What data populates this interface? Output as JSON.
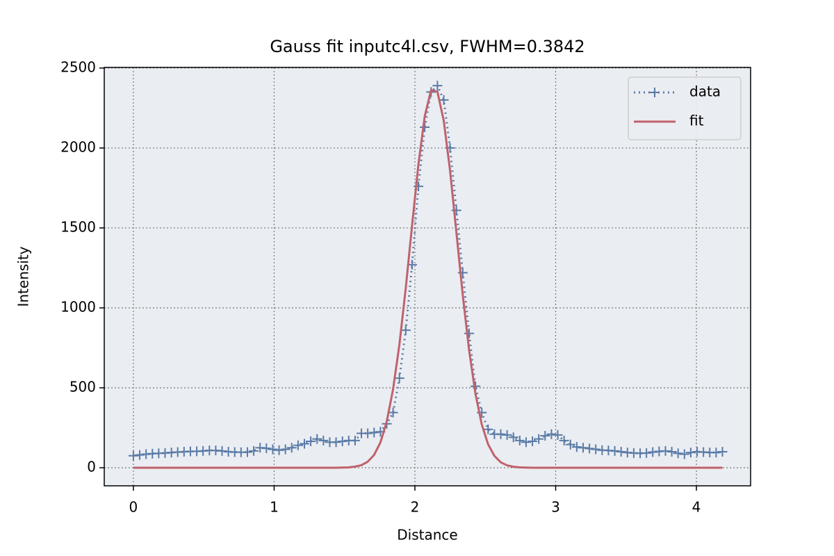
{
  "chart_data": {
    "type": "line",
    "title": "Gauss fit inputc4l.csv, FWHM=0.3842",
    "x_label": "Distance",
    "y_label": "Intensity",
    "x": [
      0,
      0.045,
      0.09,
      0.135,
      0.18,
      0.225,
      0.27,
      0.315,
      0.36,
      0.405,
      0.45,
      0.495,
      0.54,
      0.585,
      0.63,
      0.675,
      0.72,
      0.765,
      0.81,
      0.855,
      0.9,
      0.945,
      0.99,
      1.035,
      1.08,
      1.125,
      1.17,
      1.215,
      1.26,
      1.305,
      1.35,
      1.395,
      1.44,
      1.485,
      1.53,
      1.575,
      1.62,
      1.665,
      1.71,
      1.755,
      1.8,
      1.845,
      1.89,
      1.935,
      1.98,
      2.025,
      2.07,
      2.115,
      2.16,
      2.205,
      2.25,
      2.295,
      2.34,
      2.385,
      2.43,
      2.475,
      2.52,
      2.565,
      2.61,
      2.655,
      2.7,
      2.745,
      2.79,
      2.835,
      2.88,
      2.925,
      2.97,
      3.015,
      3.06,
      3.105,
      3.15,
      3.195,
      3.24,
      3.285,
      3.33,
      3.375,
      3.42,
      3.465,
      3.51,
      3.555,
      3.6,
      3.645,
      3.69,
      3.735,
      3.78,
      3.825,
      3.87,
      3.915,
      3.96,
      4.005,
      4.05,
      4.095,
      4.14,
      4.185
    ],
    "series": [
      {
        "name": "data",
        "color": "#5a7ba6",
        "linestyle": "dotted",
        "marker": "+",
        "values": [
          75,
          80,
          85,
          88,
          90,
          92,
          95,
          98,
          100,
          102,
          103,
          105,
          108,
          108,
          105,
          100,
          98,
          97,
          98,
          105,
          125,
          122,
          115,
          110,
          115,
          125,
          140,
          150,
          165,
          180,
          170,
          160,
          160,
          165,
          170,
          170,
          215,
          215,
          220,
          225,
          275,
          345,
          560,
          860,
          1270,
          1760,
          2130,
          2350,
          2390,
          2300,
          2000,
          1610,
          1220,
          840,
          510,
          345,
          240,
          210,
          210,
          205,
          190,
          170,
          160,
          165,
          180,
          200,
          210,
          205,
          170,
          145,
          130,
          125,
          120,
          115,
          110,
          108,
          105,
          100,
          95,
          92,
          90,
          92,
          98,
          102,
          105,
          100,
          90,
          85,
          95,
          100,
          98,
          95,
          95,
          100
        ]
      },
      {
        "name": "fit",
        "color": "#c0616b",
        "linestyle": "solid",
        "marker": "none",
        "values": [
          0,
          0,
          0,
          0,
          0,
          0,
          0,
          0,
          0,
          0,
          0,
          0,
          0,
          0,
          0,
          0,
          0,
          0,
          0,
          0,
          0,
          0,
          0,
          0,
          0,
          0,
          0,
          0,
          0,
          0,
          0,
          0,
          0,
          1,
          2,
          7,
          16,
          38,
          80,
          158,
          289,
          491,
          771,
          1123,
          1516,
          1897,
          2199,
          2362,
          2352,
          2171,
          1857,
          1471,
          1081,
          736,
          464,
          271,
          147,
          74,
          34,
          15,
          6,
          2,
          1,
          0,
          0,
          0,
          0,
          0,
          0,
          0,
          0,
          0,
          0,
          0,
          0,
          0,
          0,
          0,
          0,
          0,
          0,
          0,
          0,
          0,
          0,
          0,
          0,
          0,
          0,
          0,
          0,
          0,
          0,
          0
        ]
      }
    ],
    "xlim": [
      -0.207,
      4.385
    ],
    "ylim": [
      -113,
      2504
    ],
    "xticks": [
      0,
      1,
      2,
      3,
      4
    ],
    "yticks": [
      0,
      500,
      1000,
      1500,
      2000,
      2500
    ],
    "grid": true,
    "legend": "upper right"
  }
}
